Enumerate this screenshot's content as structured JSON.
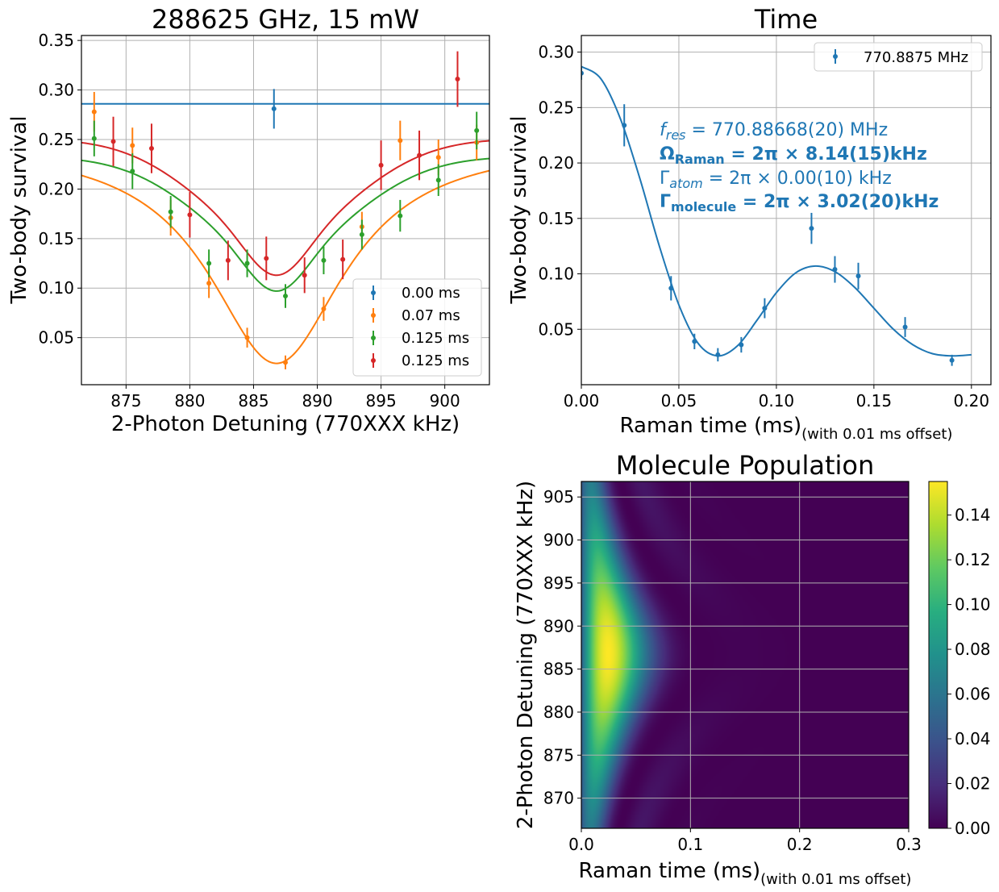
{
  "colors": {
    "blue": "#1f77b4",
    "orange": "#ff7f0e",
    "green": "#2ca02c",
    "red": "#d62728",
    "grid": "#b0b0b0"
  },
  "chart_data": [
    {
      "type": "scatter",
      "title": "288625 GHz, 15 mW",
      "xlabel": "2-Photon Detuning (770XXX kHz)",
      "ylabel": "Two-body survival",
      "xlim": [
        871.5,
        903.5
      ],
      "ylim": [
        0.0025,
        0.355
      ],
      "xticks": [
        "875",
        "880",
        "885",
        "890",
        "895",
        "900"
      ],
      "yticks": [
        "0.05",
        "0.10",
        "0.15",
        "0.20",
        "0.25",
        "0.30",
        "0.35"
      ],
      "grid": true,
      "legend_position": "lower right",
      "series": [
        {
          "name": "0.00 ms",
          "color": "#1f77b4",
          "points": [
            {
              "x": 886.6,
              "y": 0.281,
              "err": 0.02
            }
          ],
          "fit": {
            "kind": "flat",
            "baseline": 0.286
          }
        },
        {
          "name": "0.07 ms",
          "color": "#ff7f0e",
          "points": [
            {
              "x": 872.5,
              "y": 0.278,
              "err": 0.02
            },
            {
              "x": 875.5,
              "y": 0.244,
              "err": 0.018
            },
            {
              "x": 878.5,
              "y": 0.171,
              "err": 0.018
            },
            {
              "x": 881.5,
              "y": 0.105,
              "err": 0.015
            },
            {
              "x": 884.5,
              "y": 0.05,
              "err": 0.01
            },
            {
              "x": 887.5,
              "y": 0.025,
              "err": 0.007
            },
            {
              "x": 890.5,
              "y": 0.079,
              "err": 0.012
            },
            {
              "x": 893.5,
              "y": 0.162,
              "err": 0.015
            },
            {
              "x": 896.5,
              "y": 0.249,
              "err": 0.02
            },
            {
              "x": 899.5,
              "y": 0.232,
              "err": 0.018
            },
            {
              "x": 902.5,
              "y": 0.247,
              "err": 0.018
            }
          ],
          "fit": {
            "kind": "lorentz",
            "baseline": 0.248,
            "depth": 0.224,
            "center": 886.8,
            "width": 6.5
          }
        },
        {
          "name": "0.125 ms",
          "color": "#2ca02c",
          "points": [
            {
              "x": 872.5,
              "y": 0.251,
              "err": 0.018
            },
            {
              "x": 875.5,
              "y": 0.218,
              "err": 0.018
            },
            {
              "x": 878.5,
              "y": 0.177,
              "err": 0.016
            },
            {
              "x": 881.5,
              "y": 0.125,
              "err": 0.014
            },
            {
              "x": 884.5,
              "y": 0.125,
              "err": 0.014
            },
            {
              "x": 887.5,
              "y": 0.092,
              "err": 0.012
            },
            {
              "x": 890.5,
              "y": 0.128,
              "err": 0.014
            },
            {
              "x": 893.5,
              "y": 0.154,
              "err": 0.015
            },
            {
              "x": 896.5,
              "y": 0.173,
              "err": 0.016
            },
            {
              "x": 899.5,
              "y": 0.209,
              "err": 0.016
            },
            {
              "x": 902.5,
              "y": 0.259,
              "err": 0.019
            }
          ],
          "fit": {
            "kind": "double",
            "baseline": 0.233,
            "depth": 0.096,
            "center": 886.8,
            "width": 8.6,
            "depth2": 0.04,
            "width2": 3.2
          }
        },
        {
          "name": "0.125 ms",
          "color": "#d62728",
          "points": [
            {
              "x": 874.0,
              "y": 0.248,
              "err": 0.025
            },
            {
              "x": 877.0,
              "y": 0.241,
              "err": 0.025
            },
            {
              "x": 880.0,
              "y": 0.174,
              "err": 0.023
            },
            {
              "x": 883.0,
              "y": 0.128,
              "err": 0.02
            },
            {
              "x": 886.0,
              "y": 0.13,
              "err": 0.022
            },
            {
              "x": 889.0,
              "y": 0.113,
              "err": 0.018
            },
            {
              "x": 892.0,
              "y": 0.129,
              "err": 0.02
            },
            {
              "x": 895.0,
              "y": 0.224,
              "err": 0.025
            },
            {
              "x": 898.0,
              "y": 0.234,
              "err": 0.025
            },
            {
              "x": 901.0,
              "y": 0.311,
              "err": 0.028
            }
          ],
          "fit": {
            "kind": "double",
            "baseline": 0.251,
            "depth": 0.098,
            "center": 886.8,
            "width": 8.6,
            "depth2": 0.04,
            "width2": 3.2
          }
        }
      ]
    },
    {
      "type": "line",
      "title": "Time",
      "xlabel": "Raman time (ms)",
      "xlabel_suffix": "(with 0.01 ms offset)",
      "ylabel": "Two-body survival",
      "xlim": [
        0.0,
        0.21
      ],
      "ylim": [
        0.0,
        0.315
      ],
      "xticks": [
        "0.00",
        "0.05",
        "0.10",
        "0.15",
        "0.20"
      ],
      "yticks": [
        "0.05",
        "0.10",
        "0.15",
        "0.20",
        "0.25",
        "0.30"
      ],
      "grid": true,
      "legend_position": "upper right",
      "legend": "770.8875 MHz",
      "annotations": [
        {
          "text": "f_res = 770.88668(20) MHz"
        },
        {
          "text": "Ω_Raman = 2π × 8.14(15)kHz"
        },
        {
          "text": "Γ_atom = 2π × 0.00(10) kHz"
        },
        {
          "text": "Γ_molecule = 2π × 3.02(20)kHz"
        }
      ],
      "series": [
        {
          "name": "770.8875 MHz",
          "color": "#1f77b4",
          "points": [
            {
              "x": 0.0,
              "y": 0.281,
              "err": 0.006
            },
            {
              "x": 0.022,
              "y": 0.234,
              "err": 0.019
            },
            {
              "x": 0.046,
              "y": 0.087,
              "err": 0.011
            },
            {
              "x": 0.058,
              "y": 0.039,
              "err": 0.007
            },
            {
              "x": 0.07,
              "y": 0.027,
              "err": 0.006
            },
            {
              "x": 0.082,
              "y": 0.036,
              "err": 0.007
            },
            {
              "x": 0.094,
              "y": 0.069,
              "err": 0.009
            },
            {
              "x": 0.118,
              "y": 0.141,
              "err": 0.014
            },
            {
              "x": 0.13,
              "y": 0.104,
              "err": 0.012
            },
            {
              "x": 0.142,
              "y": 0.098,
              "err": 0.012
            },
            {
              "x": 0.166,
              "y": 0.052,
              "err": 0.009
            },
            {
              "x": 0.19,
              "y": 0.022,
              "err": 0.005
            }
          ],
          "fit": {
            "x": [
              0,
              0.01,
              0.02,
              0.03,
              0.04,
              0.05,
              0.06,
              0.07,
              0.08,
              0.09,
              0.1,
              0.11,
              0.12,
              0.13,
              0.14,
              0.15,
              0.16,
              0.17,
              0.18,
              0.19,
              0.2
            ],
            "y": [
              0.287,
              0.276,
              0.24,
              0.186,
              0.125,
              0.072,
              0.037,
              0.026,
              0.035,
              0.058,
              0.083,
              0.101,
              0.107,
              0.102,
              0.088,
              0.069,
              0.05,
              0.036,
              0.028,
              0.026,
              0.027
            ]
          }
        }
      ]
    },
    {
      "type": "heatmap",
      "title": "Molecule Population",
      "xlabel": "Raman time (ms)",
      "xlabel_suffix": "(with 0.01 ms offset)",
      "ylabel": "2-Photon Detuning (770XXX kHz)",
      "xlim": [
        0.0,
        0.3
      ],
      "ylim": [
        866.5,
        906.8
      ],
      "xticks": [
        "0.0",
        "0.1",
        "0.2",
        "0.3"
      ],
      "yticks": [
        "870",
        "875",
        "880",
        "885",
        "890",
        "895",
        "900",
        "905"
      ],
      "colorbar": {
        "min": 0.0,
        "max": 0.155,
        "ticks": [
          "0.00",
          "0.02",
          "0.04",
          "0.06",
          "0.08",
          "0.10",
          "0.12",
          "0.14"
        ],
        "colormap": "viridis"
      },
      "model": {
        "center": 886.8,
        "rabi_khz": 8.14,
        "decay_khz": 3.02,
        "peak": 0.155
      }
    }
  ]
}
